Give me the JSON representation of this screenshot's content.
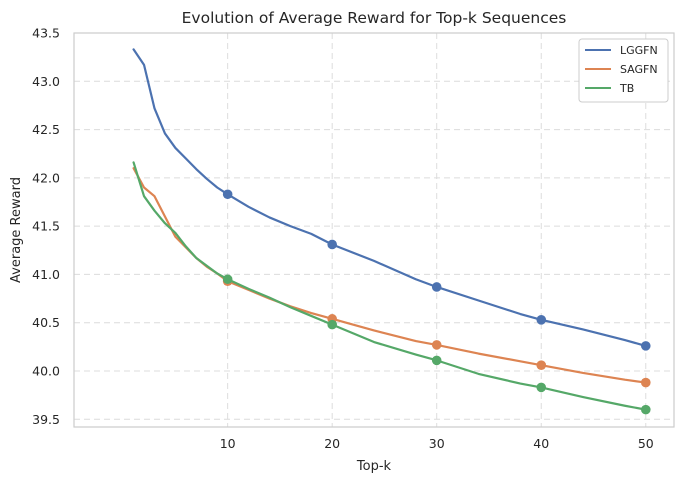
{
  "chart_data": {
    "type": "line",
    "title": "Evolution of Average Reward for Top-k Sequences",
    "xlabel": "Top-k",
    "ylabel": "Average Reward",
    "xlim": [
      -4.7,
      52.7
    ],
    "ylim": [
      39.42,
      43.5
    ],
    "x_ticks": [
      10,
      20,
      30,
      40,
      50
    ],
    "y_ticks": [
      39.5,
      40.0,
      40.5,
      41.0,
      41.5,
      42.0,
      42.5,
      43.0,
      43.5
    ],
    "x_tick_labels": [
      "10",
      "20",
      "30",
      "40",
      "50"
    ],
    "y_tick_labels": [
      "39.5",
      "40.0",
      "40.5",
      "41.0",
      "41.5",
      "42.0",
      "42.5",
      "43.0",
      "43.5"
    ],
    "grid": true,
    "legend_position": "top-right",
    "marker_x": [
      10,
      20,
      30,
      40,
      50
    ],
    "series": [
      {
        "name": "LGGFN",
        "color": "#4c72b0",
        "x": [
          1,
          2,
          3,
          4,
          5,
          6,
          7,
          8,
          9,
          10,
          12,
          14,
          16,
          18,
          20,
          24,
          28,
          30,
          34,
          38,
          40,
          44,
          48,
          50
        ],
        "values": [
          43.33,
          43.17,
          42.72,
          42.46,
          42.31,
          42.2,
          42.09,
          41.99,
          41.9,
          41.83,
          41.7,
          41.59,
          41.5,
          41.42,
          41.31,
          41.14,
          40.95,
          40.87,
          40.73,
          40.59,
          40.53,
          40.43,
          40.32,
          40.26
        ]
      },
      {
        "name": "SAGFN",
        "color": "#dd8452",
        "x": [
          1,
          2,
          3,
          4,
          5,
          6,
          7,
          8,
          9,
          10,
          12,
          14,
          16,
          18,
          20,
          24,
          28,
          30,
          34,
          38,
          40,
          44,
          48,
          50
        ],
        "values": [
          42.1,
          41.9,
          41.81,
          41.6,
          41.39,
          41.28,
          41.17,
          41.08,
          41.01,
          40.93,
          40.84,
          40.75,
          40.67,
          40.6,
          40.54,
          40.42,
          40.31,
          40.27,
          40.18,
          40.1,
          40.06,
          39.98,
          39.91,
          39.88
        ]
      },
      {
        "name": "TB",
        "color": "#55a868",
        "x": [
          1,
          2,
          3,
          4,
          5,
          6,
          7,
          8,
          9,
          10,
          12,
          14,
          16,
          18,
          20,
          24,
          28,
          30,
          34,
          38,
          40,
          44,
          48,
          50
        ],
        "values": [
          42.16,
          41.81,
          41.66,
          41.53,
          41.43,
          41.29,
          41.17,
          41.09,
          41.01,
          40.95,
          40.85,
          40.76,
          40.66,
          40.57,
          40.48,
          40.3,
          40.17,
          40.11,
          39.97,
          39.87,
          39.83,
          39.73,
          39.64,
          39.6
        ]
      }
    ]
  }
}
